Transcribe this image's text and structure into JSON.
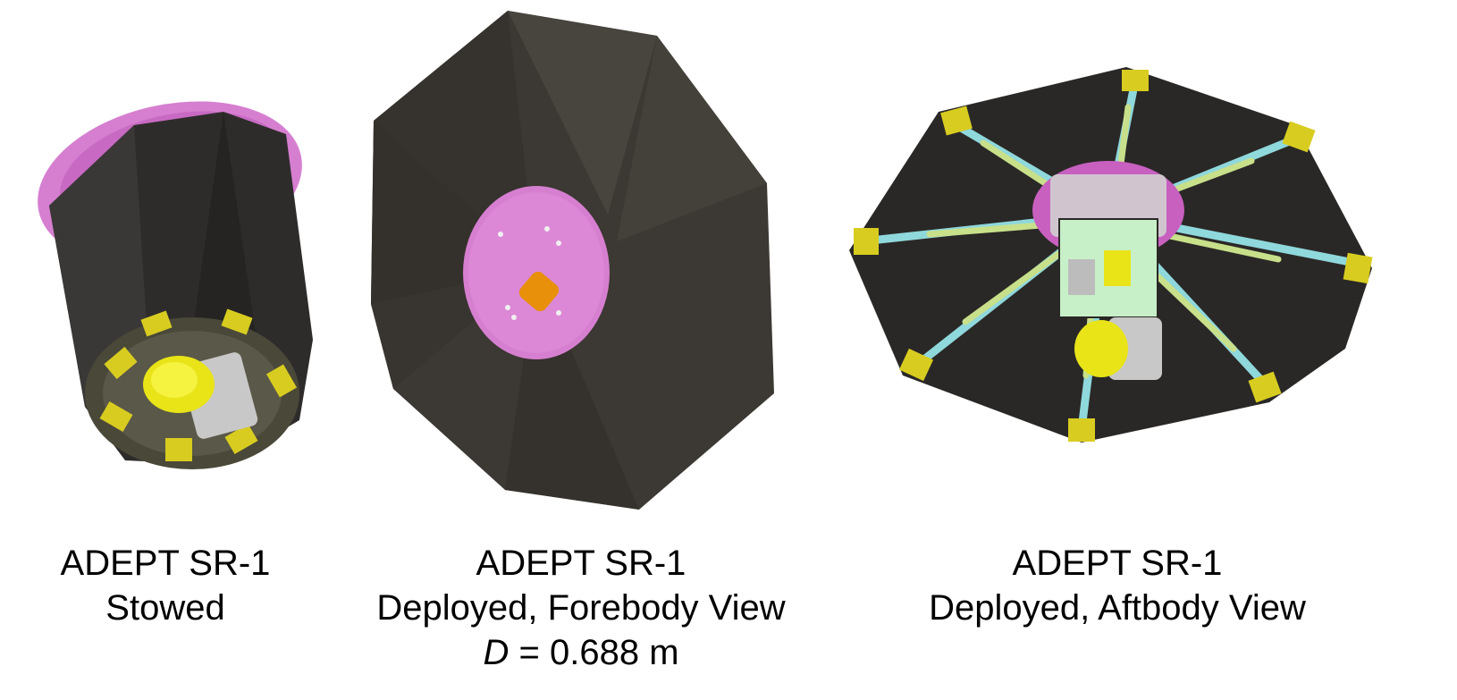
{
  "panels": [
    {
      "id": "stowed",
      "title": "ADEPT SR-1",
      "subtitle": "Stowed"
    },
    {
      "id": "forebody",
      "title": "ADEPT SR-1",
      "subtitle": "Deployed, Forebody View",
      "dimension": {
        "symbol": "D",
        "equals": "=",
        "value": "0.688 m"
      }
    },
    {
      "id": "aftbody",
      "title": "ADEPT SR-1",
      "subtitle": "Deployed, Aftbody View"
    }
  ],
  "colors": {
    "fabric": "#3a3632",
    "nose_cap": "#d67fd0",
    "ribs": "#8fd8dc",
    "struts": "#c8e08a",
    "fittings": "#d8cc20",
    "payload": "#e8e418",
    "structure": "#d8d8d8"
  }
}
